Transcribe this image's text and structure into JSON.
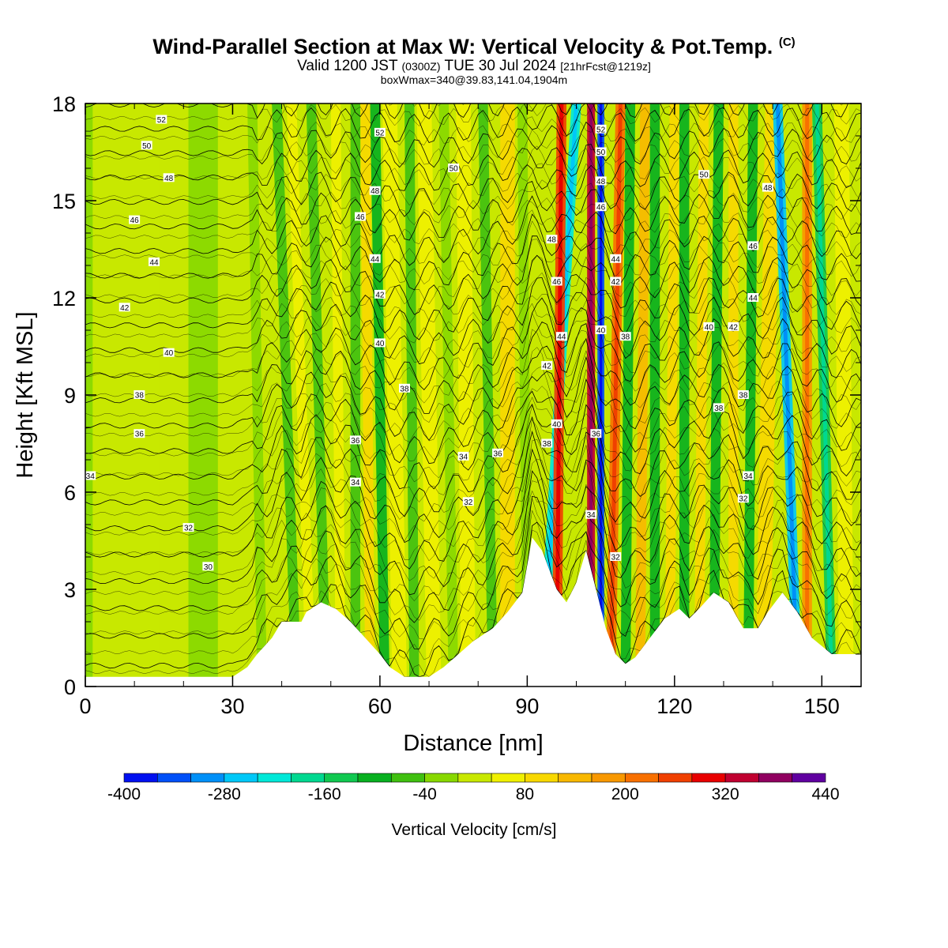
{
  "chart_data": {
    "type": "heatmap",
    "title_main": "Wind-Parallel Section at Max W: Vertical Velocity & Pot.Temp.",
    "title_mark": "(C)",
    "subtitle_a": "Valid 1200 JST",
    "subtitle_b": "(0300Z)",
    "subtitle_c": "TUE 30 Jul 2024",
    "subtitle_d": "[21hrFcst@1219z]",
    "subtitle2": "boxWmax=340@39.83,141.04,1904m",
    "xlabel": "Distance [nm]",
    "ylabel": "Height [Kft MSL]",
    "xlim": [
      0,
      158
    ],
    "ylim": [
      0,
      18
    ],
    "x_ticks": [
      "0",
      "30",
      "60",
      "90",
      "120",
      "150"
    ],
    "y_ticks": [
      "0",
      "3",
      "6",
      "9",
      "12",
      "15",
      "18"
    ],
    "colorbar_label": "Vertical Velocity [cm/s]",
    "colorbar_ticks": [
      "-400",
      "-280",
      "-160",
      "-40",
      "80",
      "200",
      "320",
      "440"
    ],
    "colorbar_min": -400,
    "colorbar_step": 40,
    "colors": [
      "#0010f0",
      "#0050f8",
      "#0090f8",
      "#00c8f8",
      "#00e8d8",
      "#00d890",
      "#10c850",
      "#08b020",
      "#40c010",
      "#88d800",
      "#c8e800",
      "#f0f000",
      "#f8d800",
      "#f8b800",
      "#f89800",
      "#f87000",
      "#f04000",
      "#e80000",
      "#c00030",
      "#900060",
      "#6000a0"
    ],
    "background_w": 30,
    "terrain_kft": [
      [
        0,
        0.3
      ],
      [
        30,
        0.3
      ],
      [
        33,
        0.6
      ],
      [
        35,
        1.0
      ],
      [
        38,
        1.5
      ],
      [
        40,
        2.0
      ],
      [
        44,
        2.0
      ],
      [
        45,
        2.3
      ],
      [
        48,
        2.6
      ],
      [
        51,
        2.4
      ],
      [
        54,
        2.0
      ],
      [
        57,
        1.5
      ],
      [
        60,
        1.0
      ],
      [
        62,
        0.6
      ],
      [
        65,
        0.3
      ],
      [
        70,
        0.3
      ],
      [
        73,
        0.6
      ],
      [
        76,
        1.0
      ],
      [
        79,
        1.4
      ],
      [
        83,
        1.8
      ],
      [
        86,
        2.3
      ],
      [
        89,
        2.9
      ],
      [
        91,
        4.6
      ],
      [
        93,
        4.2
      ],
      [
        96,
        3.0
      ],
      [
        98,
        2.6
      ],
      [
        100,
        3.2
      ],
      [
        102,
        4.2
      ],
      [
        104,
        3.0
      ],
      [
        106,
        1.8
      ],
      [
        108,
        1.0
      ],
      [
        110,
        0.7
      ],
      [
        112,
        0.9
      ],
      [
        115,
        1.5
      ],
      [
        118,
        2.1
      ],
      [
        121,
        2.4
      ],
      [
        123,
        2.1
      ],
      [
        125,
        2.4
      ],
      [
        128,
        2.9
      ],
      [
        131,
        2.6
      ],
      [
        134,
        1.8
      ],
      [
        137,
        1.8
      ],
      [
        139,
        2.3
      ],
      [
        142,
        2.9
      ],
      [
        145,
        2.3
      ],
      [
        148,
        1.5
      ],
      [
        152,
        1.0
      ],
      [
        158,
        1.0
      ]
    ],
    "theta_levels": [
      30,
      31,
      32,
      33,
      34,
      35,
      36,
      37,
      38,
      39,
      40,
      41,
      42,
      43,
      44,
      45,
      46,
      47,
      48,
      49,
      50,
      51,
      52
    ],
    "theta_labels": [
      {
        "x": 15.5,
        "y": 17.5,
        "text": "52"
      },
      {
        "x": 12.5,
        "y": 16.7,
        "text": "50"
      },
      {
        "x": 17,
        "y": 15.7,
        "text": "48"
      },
      {
        "x": 10,
        "y": 14.4,
        "text": "46"
      },
      {
        "x": 14,
        "y": 13.1,
        "text": "44"
      },
      {
        "x": 8,
        "y": 11.7,
        "text": "42"
      },
      {
        "x": 17,
        "y": 10.3,
        "text": "40"
      },
      {
        "x": 11,
        "y": 9.0,
        "text": "38"
      },
      {
        "x": 11,
        "y": 7.8,
        "text": "36"
      },
      {
        "x": 1,
        "y": 6.5,
        "text": "34"
      },
      {
        "x": 21,
        "y": 4.9,
        "text": "32"
      },
      {
        "x": 25,
        "y": 3.7,
        "text": "30"
      },
      {
        "x": 60,
        "y": 17.1,
        "text": "52"
      },
      {
        "x": 75,
        "y": 16.0,
        "text": "50"
      },
      {
        "x": 59,
        "y": 15.3,
        "text": "48"
      },
      {
        "x": 56,
        "y": 14.5,
        "text": "46"
      },
      {
        "x": 59,
        "y": 13.2,
        "text": "44"
      },
      {
        "x": 60,
        "y": 12.1,
        "text": "42"
      },
      {
        "x": 60,
        "y": 10.6,
        "text": "40"
      },
      {
        "x": 65,
        "y": 9.2,
        "text": "38"
      },
      {
        "x": 55,
        "y": 7.6,
        "text": "36"
      },
      {
        "x": 55,
        "y": 6.3,
        "text": "34"
      },
      {
        "x": 77,
        "y": 7.1,
        "text": "34"
      },
      {
        "x": 84,
        "y": 7.2,
        "text": "36"
      },
      {
        "x": 78,
        "y": 5.7,
        "text": "32"
      },
      {
        "x": 95,
        "y": 13.8,
        "text": "48"
      },
      {
        "x": 96,
        "y": 12.5,
        "text": "46"
      },
      {
        "x": 97,
        "y": 10.8,
        "text": "44"
      },
      {
        "x": 94,
        "y": 9.9,
        "text": "42"
      },
      {
        "x": 96,
        "y": 8.1,
        "text": "40"
      },
      {
        "x": 94,
        "y": 7.5,
        "text": "38"
      },
      {
        "x": 105,
        "y": 17.2,
        "text": "52"
      },
      {
        "x": 105,
        "y": 16.5,
        "text": "50"
      },
      {
        "x": 105,
        "y": 15.6,
        "text": "48"
      },
      {
        "x": 105,
        "y": 14.8,
        "text": "46"
      },
      {
        "x": 108,
        "y": 13.2,
        "text": "44"
      },
      {
        "x": 108,
        "y": 12.5,
        "text": "42"
      },
      {
        "x": 105,
        "y": 11.0,
        "text": "40"
      },
      {
        "x": 110,
        "y": 10.8,
        "text": "38"
      },
      {
        "x": 104,
        "y": 7.8,
        "text": "36"
      },
      {
        "x": 103,
        "y": 5.3,
        "text": "34"
      },
      {
        "x": 108,
        "y": 4.0,
        "text": "32"
      },
      {
        "x": 126,
        "y": 15.8,
        "text": "50"
      },
      {
        "x": 139,
        "y": 15.4,
        "text": "48"
      },
      {
        "x": 136,
        "y": 13.6,
        "text": "46"
      },
      {
        "x": 136,
        "y": 12.0,
        "text": "44"
      },
      {
        "x": 127,
        "y": 11.1,
        "text": "40"
      },
      {
        "x": 132,
        "y": 11.1,
        "text": "42"
      },
      {
        "x": 134,
        "y": 9.0,
        "text": "38"
      },
      {
        "x": 129,
        "y": 8.6,
        "text": "38"
      },
      {
        "x": 135,
        "y": 6.5,
        "text": "34"
      },
      {
        "x": 134,
        "y": 5.8,
        "text": "32"
      }
    ],
    "w_bands": [
      {
        "x": 0,
        "x2": 0,
        "w": -40,
        "width": 3
      },
      {
        "x": 13,
        "x2": 13,
        "w": 20,
        "width": 4
      },
      {
        "x": 24,
        "x2": 24,
        "w": -25,
        "width": 6
      },
      {
        "x": 36,
        "x2": 34,
        "w": -40,
        "width": 2
      },
      {
        "x": 40,
        "x2": 36,
        "w": 25,
        "width": 2
      },
      {
        "x": 43,
        "x2": 39,
        "w": -55,
        "width": 2
      },
      {
        "x": 46,
        "x2": 42,
        "w": 40,
        "width": 2
      },
      {
        "x": 49,
        "x2": 46,
        "w": -60,
        "width": 2
      },
      {
        "x": 52,
        "x2": 51,
        "w": 50,
        "width": 2
      },
      {
        "x": 55,
        "x2": 55,
        "w": -70,
        "width": 2
      },
      {
        "x": 58,
        "x2": 57,
        "w": 80,
        "width": 2
      },
      {
        "x": 61,
        "x2": 59,
        "w": -90,
        "width": 2
      },
      {
        "x": 64,
        "x2": 62,
        "w": 40,
        "width": 3
      },
      {
        "x": 67,
        "x2": 66,
        "w": -50,
        "width": 2
      },
      {
        "x": 71,
        "x2": 69,
        "w": 50,
        "width": 3
      },
      {
        "x": 75,
        "x2": 73,
        "w": -35,
        "width": 2
      },
      {
        "x": 78,
        "x2": 77,
        "w": 70,
        "width": 3
      },
      {
        "x": 83,
        "x2": 81,
        "w": -45,
        "width": 2
      },
      {
        "x": 86,
        "x2": 86,
        "w": 80,
        "width": 3
      },
      {
        "x": 90,
        "x2": 89,
        "w": -40,
        "width": 2
      },
      {
        "x": 93,
        "x2": 100,
        "w": -220,
        "width": 2
      },
      {
        "x": 96,
        "x2": 97,
        "w": 250,
        "width": 2
      },
      {
        "x": 103,
        "x2": 103,
        "w": 330,
        "width": 1.6
      },
      {
        "x": 105,
        "x2": 105,
        "w": -330,
        "width": 1.4
      },
      {
        "x": 107,
        "x2": 109,
        "w": 200,
        "width": 2
      },
      {
        "x": 110,
        "x2": 111,
        "w": -110,
        "width": 2
      },
      {
        "x": 113,
        "x2": 114,
        "w": 120,
        "width": 2
      },
      {
        "x": 116,
        "x2": 116,
        "w": -100,
        "width": 2
      },
      {
        "x": 119,
        "x2": 120,
        "w": 110,
        "width": 2
      },
      {
        "x": 122,
        "x2": 122,
        "w": -100,
        "width": 2
      },
      {
        "x": 125,
        "x2": 126,
        "w": 80,
        "width": 2
      },
      {
        "x": 128,
        "x2": 129,
        "w": -120,
        "width": 2
      },
      {
        "x": 132,
        "x2": 132,
        "w": 110,
        "width": 2
      },
      {
        "x": 135,
        "x2": 136,
        "w": -90,
        "width": 2
      },
      {
        "x": 138,
        "x2": 140,
        "w": 100,
        "width": 3
      },
      {
        "x": 145,
        "x2": 141,
        "w": -260,
        "width": 2
      },
      {
        "x": 147,
        "x2": 147,
        "w": 180,
        "width": 2
      },
      {
        "x": 152,
        "x2": 149,
        "w": -130,
        "width": 2
      },
      {
        "x": 155,
        "x2": 154,
        "w": 60,
        "width": 3
      }
    ]
  }
}
